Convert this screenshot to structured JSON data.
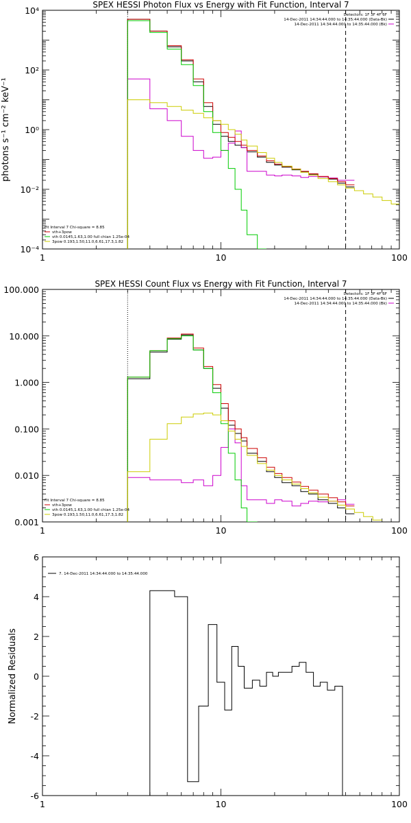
{
  "chart_data": [
    {
      "type": "line",
      "panel": "photon_flux",
      "title": "SPEX HESSI Photon Flux vs Energy with Fit Function, Interval 7",
      "xlabel": "",
      "ylabel": "photons s⁻¹ cm⁻² keV⁻¹",
      "xscale": "log",
      "yscale": "log",
      "xlim": [
        1,
        100
      ],
      "ylim": [
        0.0001,
        10000
      ],
      "x_ticks": [
        "1",
        "10",
        "100"
      ],
      "y_ticks": [
        "10⁻⁴",
        "10⁻²",
        "10⁰",
        "10²",
        "10⁴"
      ],
      "y_tick_values": [
        0.0001,
        0.01,
        1,
        100,
        10000
      ],
      "legend_top_right": [
        "Detectors: 1F 3F 4F 6F",
        "14-Dec-2011 14:34:44.000 to 14:35:44.000 (Data-Bk)",
        "14-Dec-2011 14:34:44.000 to 14:35:44.000 (Bk)"
      ],
      "legend_top_right_colors": [
        "#000000",
        "#000000",
        "#cc00cc"
      ],
      "legend_bottom_left": [
        "Fit Interval 7   Chi-square = 8.85",
        "vth+3pow",
        "vth 0.0145,1.63,1.00  full chian 1.25e-04",
        "3pow 0.193,1.50,11.0,6.61,17.3,1.82"
      ],
      "legend_bottom_left_colors": [
        "#000000",
        "#cc0000",
        "#00cc00",
        "#cccc00"
      ],
      "fit_range_kev": [
        3,
        50
      ],
      "bin_edges": [
        3,
        4,
        5,
        6,
        7,
        8,
        9,
        10,
        11,
        12,
        13,
        14,
        16,
        18,
        20,
        22,
        25,
        28,
        31,
        35,
        40,
        45,
        50,
        56,
        63,
        71,
        80,
        90,
        100
      ],
      "series": [
        {
          "name": "14-Dec-2011 14:34:44.000 to 14:35:44.000 (Data-Bk)",
          "color": "#000000",
          "values": [
            5000,
            2000,
            600,
            200,
            40,
            6,
            1.5,
            0.6,
            0.4,
            0.3,
            0.25,
            0.18,
            0.12,
            0.08,
            0.065,
            0.055,
            0.045,
            0.038,
            0.032,
            0.026,
            0.022,
            0.016,
            0.012
          ]
        },
        {
          "name": "14-Dec-2011 14:34:44.000 to 14:35:44.000 (Bk)",
          "color": "#cc00cc",
          "values": [
            50,
            5,
            2,
            0.6,
            0.2,
            0.11,
            0.12,
            0.2,
            0.35,
            0.9,
            0.25,
            0.04,
            0.04,
            0.03,
            0.028,
            0.03,
            0.028,
            0.025,
            0.027,
            0.026,
            0.024,
            0.02,
            0.02
          ]
        },
        {
          "name": "vth+3pow",
          "color": "#cc0000",
          "values": [
            5000,
            2000,
            650,
            220,
            50,
            8,
            2,
            0.8,
            0.55,
            0.4,
            0.3,
            0.2,
            0.13,
            0.09,
            0.07,
            0.058,
            0.048,
            0.04,
            0.033,
            0.027,
            0.023,
            0.018,
            0.014
          ]
        },
        {
          "name": "vth 0.0145,1.63,1.00  full chian 1.25e-04",
          "color": "#00cc00",
          "values": [
            4500,
            1800,
            500,
            150,
            30,
            4,
            0.8,
            0.2,
            0.05,
            0.01,
            0.002,
            0.0003,
            8e-05
          ]
        },
        {
          "name": "3pow 0.193,1.50,11.0,6.61,17.3,1.82",
          "color": "#cccc00",
          "values": [
            10,
            8,
            6,
            4.5,
            3.5,
            2.5,
            2,
            1.5,
            1,
            0.7,
            0.45,
            0.28,
            0.17,
            0.11,
            0.08,
            0.06,
            0.047,
            0.037,
            0.03,
            0.023,
            0.018,
            0.014,
            0.011,
            0.009,
            0.007,
            0.0055,
            0.0042,
            0.0032
          ]
        }
      ]
    },
    {
      "type": "line",
      "panel": "count_flux",
      "title": "SPEX HESSI Count Flux vs Energy with Fit Function, Interval 7",
      "xlabel": "",
      "ylabel": "",
      "xscale": "log",
      "yscale": "log",
      "xlim": [
        1,
        100
      ],
      "ylim": [
        0.001,
        100
      ],
      "x_ticks": [
        "1",
        "10",
        "100"
      ],
      "y_ticks": [
        "0.001",
        "0.010",
        "0.100",
        "1.000",
        "10.000",
        "100.000"
      ],
      "y_tick_values": [
        0.001,
        0.01,
        0.1,
        1,
        10,
        100
      ],
      "legend_top_right": [
        "Detectors: 1F 3F 4F 6F",
        "14-Dec-2011 14:34:44.000 to 14:35:44.000 (Data-Bk)",
        "14-Dec-2011 14:34:44.000 to 14:35:44.000 (Bk)"
      ],
      "legend_top_right_colors": [
        "#000000",
        "#000000",
        "#cc00cc"
      ],
      "legend_bottom_left": [
        "Fit Interval 7   Chi-square = 8.85",
        "vth+3pow",
        "vth 0.0145,1.63,1.00  full chian 1.25e-04",
        "3pow 0.193,1.50,11.0,6.61,17.3,1.82"
      ],
      "legend_bottom_left_colors": [
        "#000000",
        "#cc0000",
        "#00cc00",
        "#cccc00"
      ],
      "fit_range_kev": [
        3,
        50
      ],
      "bin_edges": [
        3,
        4,
        5,
        6,
        7,
        8,
        9,
        10,
        11,
        12,
        13,
        14,
        16,
        18,
        20,
        22,
        25,
        28,
        31,
        35,
        40,
        45,
        50,
        56,
        63,
        71,
        80,
        90,
        100
      ],
      "series": [
        {
          "name": "14-Dec-2011 14:34:44.000 to 14:35:44.000 (Data-Bk)",
          "color": "#000000",
          "values": [
            1.2,
            4.5,
            8.5,
            10.5,
            5,
            2,
            0.75,
            0.28,
            0.12,
            0.08,
            0.055,
            0.03,
            0.02,
            0.012,
            0.009,
            0.007,
            0.006,
            0.0045,
            0.004,
            0.003,
            0.0025,
            0.002,
            0.0015
          ]
        },
        {
          "name": "14-Dec-2011 14:34:44.000 to 14:35:44.000 (Bk)",
          "color": "#cc00cc",
          "values": [
            0.009,
            0.008,
            0.008,
            0.007,
            0.008,
            0.006,
            0.01,
            0.04,
            0.1,
            0.05,
            0.006,
            0.003,
            0.003,
            0.0025,
            0.003,
            0.0028,
            0.0022,
            0.0025,
            0.0028,
            0.0027,
            0.0028,
            0.003,
            0.0024
          ]
        },
        {
          "name": "vth+3pow",
          "color": "#cc0000",
          "values": [
            1.3,
            4.8,
            9,
            11,
            5.5,
            2.2,
            0.9,
            0.35,
            0.15,
            0.1,
            0.065,
            0.038,
            0.024,
            0.015,
            0.011,
            0.009,
            0.0072,
            0.0058,
            0.0048,
            0.004,
            0.0033,
            0.0027,
            0.0022
          ]
        },
        {
          "name": "vth 0.0145,1.63,1.00  full chian 1.25e-04",
          "color": "#00cc00",
          "values": [
            1.3,
            4.8,
            8.7,
            10,
            5,
            2,
            0.6,
            0.13,
            0.03,
            0.008,
            0.002,
            0.0008
          ]
        },
        {
          "name": "3pow 0.193,1.50,11.0,6.61,17.3,1.82",
          "color": "#cccc00",
          "values": [
            0.012,
            0.06,
            0.13,
            0.18,
            0.21,
            0.22,
            0.2,
            0.15,
            0.09,
            0.06,
            0.042,
            0.027,
            0.018,
            0.013,
            0.01,
            0.008,
            0.0065,
            0.0052,
            0.0042,
            0.0034,
            0.0028,
            0.0023,
            0.0019,
            0.0016,
            0.0013,
            0.0011
          ]
        }
      ]
    },
    {
      "type": "line",
      "panel": "residuals",
      "title": "",
      "xlabel": "",
      "ylabel": "Normalized Residuals",
      "xscale": "log",
      "yscale": "linear",
      "xlim": [
        1,
        100
      ],
      "ylim": [
        -6,
        6
      ],
      "x_ticks": [
        "1",
        "10",
        "100"
      ],
      "y_ticks": [
        "-6",
        "-4",
        "-2",
        "0",
        "2",
        "4",
        "6"
      ],
      "y_tick_values": [
        -6,
        -4,
        -2,
        0,
        2,
        4,
        6
      ],
      "legend": [
        "7. 14-Dec-2011 14:34:44.000 to 14:35:44.000"
      ],
      "bin_edges": [
        3,
        4,
        4.5,
        5.5,
        6.5,
        7.5,
        8.5,
        9.5,
        10.5,
        11.5,
        12.5,
        13.5,
        15,
        16.5,
        18,
        19.5,
        21,
        23,
        25,
        27.5,
        30,
        33,
        36,
        39.5,
        43.5,
        48
      ],
      "series": [
        {
          "name": "7. 14-Dec-2011 14:34:44.000 to 14:35:44.000",
          "color": "#000000",
          "values": [
            -6,
            4.3,
            4.3,
            4,
            -5.3,
            -1.5,
            2.6,
            -0.3,
            -1.7,
            1.5,
            0.5,
            -0.6,
            -0.2,
            -0.5,
            0.2,
            0,
            0.2,
            0.2,
            0.5,
            0.7,
            0.2,
            -0.5,
            -0.3,
            -0.7,
            -0.5
          ]
        }
      ]
    }
  ]
}
